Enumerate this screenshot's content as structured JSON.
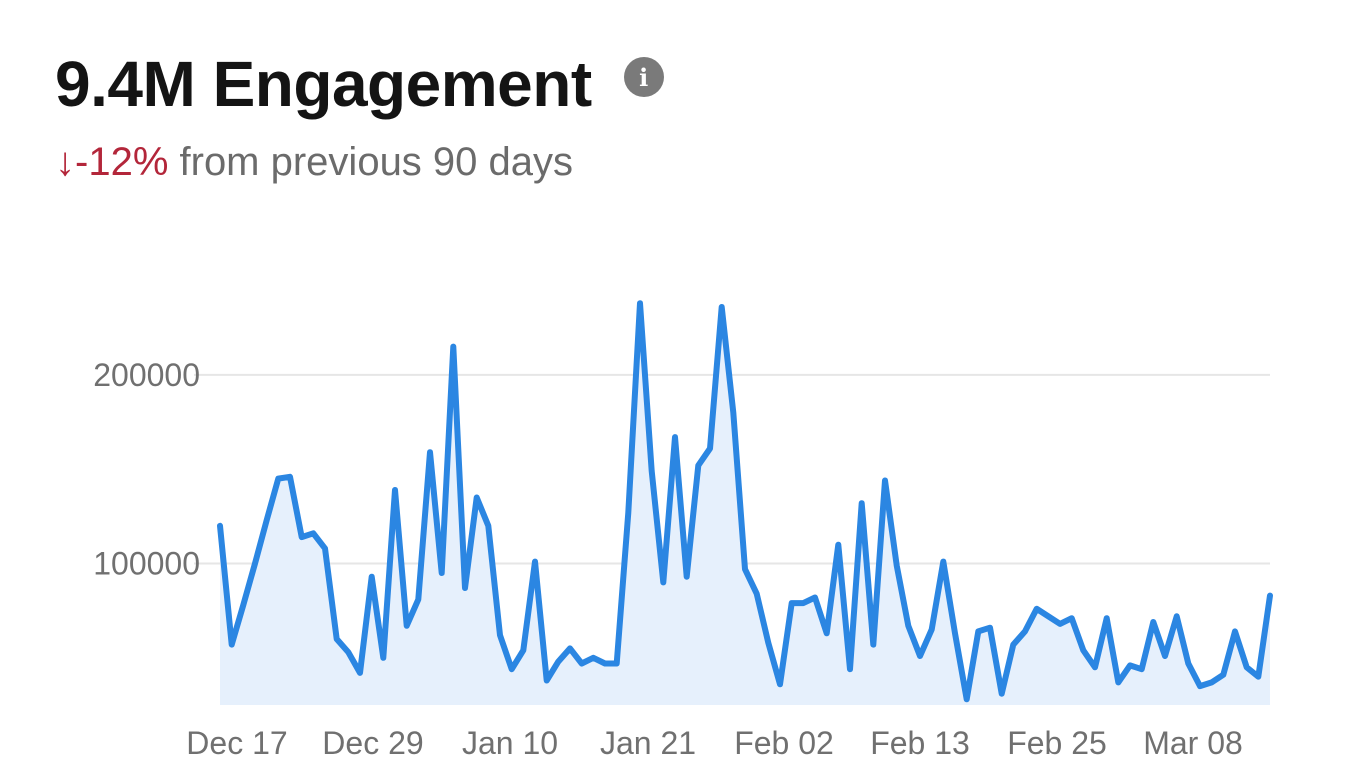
{
  "header": {
    "headline": "9.4M Engagement",
    "info_icon": "info-icon",
    "change_arrow": "↓",
    "change_value": "-12%",
    "change_suffix": " from previous 90 days"
  },
  "colors": {
    "line": "#2b86e2",
    "area": "#e6f0fc",
    "grid": "#e6e6e6",
    "change": "#b3263a"
  },
  "chart_data": {
    "type": "area",
    "title": "",
    "xlabel": "",
    "ylabel": "",
    "ylim": [
      25000,
      245000
    ],
    "yticks": [
      100000,
      200000
    ],
    "ytick_labels": [
      "100000",
      "200000"
    ],
    "xtick_labels": [
      "Dec 17",
      "Dec 29",
      "Jan 10",
      "Jan 21",
      "Feb 02",
      "Feb 13",
      "Feb 25",
      "Mar 08"
    ],
    "grid": true,
    "series": [
      {
        "values": [
          120000,
          57000,
          78000,
          100000,
          123000,
          145000,
          146000,
          114000,
          116000,
          108000,
          60000,
          53000,
          42000,
          93000,
          50000,
          139000,
          67000,
          81000,
          159000,
          95000,
          215000,
          87000,
          135000,
          120000,
          62000,
          44000,
          54000,
          101000,
          38000,
          48000,
          55000,
          47000,
          50000,
          47000,
          47000,
          127000,
          238000,
          149000,
          90000,
          167000,
          93000,
          152000,
          161000,
          236000,
          180000,
          97000,
          84000,
          58000,
          36000,
          79000,
          79000,
          82000,
          63000,
          110000,
          44000,
          132000,
          57000,
          144000,
          99000,
          67000,
          51000,
          65000,
          101000,
          63000,
          28000,
          64000,
          66000,
          31000,
          57000,
          64000,
          76000,
          72000,
          68000,
          71000,
          54000,
          45000,
          71000,
          37000,
          46000,
          44000,
          69000,
          51000,
          72000,
          47000,
          35000,
          37000,
          41000,
          64000,
          45000,
          40000,
          83000
        ]
      }
    ]
  }
}
